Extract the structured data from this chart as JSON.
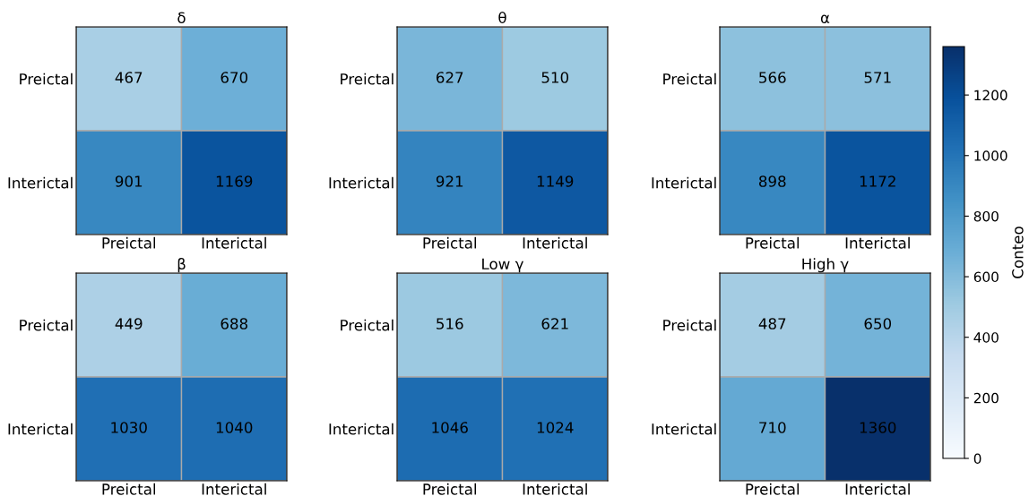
{
  "chart_data": [
    {
      "type": "heatmap",
      "title": "δ",
      "categories": [
        "Preictal",
        "Interictal"
      ],
      "y_categories": [
        "Preictal",
        "Interictal"
      ],
      "cells": [
        [
          467,
          670
        ],
        [
          901,
          1169
        ]
      ],
      "data_labels": true
    },
    {
      "type": "heatmap",
      "title": "θ",
      "categories": [
        "Preictal",
        "Interictal"
      ],
      "y_categories": [
        "Preictal",
        "Interictal"
      ],
      "cells": [
        [
          627,
          510
        ],
        [
          921,
          1149
        ]
      ],
      "data_labels": true
    },
    {
      "type": "heatmap",
      "title": "α",
      "categories": [
        "Preictal",
        "Interictal"
      ],
      "y_categories": [
        "Preictal",
        "Interictal"
      ],
      "cells": [
        [
          566,
          571
        ],
        [
          898,
          1172
        ]
      ],
      "data_labels": true
    },
    {
      "type": "heatmap",
      "title": "β",
      "categories": [
        "Preictal",
        "Interictal"
      ],
      "y_categories": [
        "Preictal",
        "Interictal"
      ],
      "cells": [
        [
          449,
          688
        ],
        [
          1030,
          1040
        ]
      ],
      "data_labels": true
    },
    {
      "type": "heatmap",
      "title": "Low γ",
      "categories": [
        "Preictal",
        "Interictal"
      ],
      "y_categories": [
        "Preictal",
        "Interictal"
      ],
      "cells": [
        [
          516,
          621
        ],
        [
          1046,
          1024
        ]
      ],
      "data_labels": true
    },
    {
      "type": "heatmap",
      "title": "High γ",
      "categories": [
        "Preictal",
        "Interictal"
      ],
      "y_categories": [
        "Preictal",
        "Interictal"
      ],
      "cells": [
        [
          487,
          650
        ],
        [
          710,
          1360
        ]
      ],
      "clim": [
        0,
        1360
      ],
      "cticks": [
        0,
        200,
        400,
        600,
        800,
        1000,
        1200
      ],
      "clabel": "Conteo",
      "data_labels": true
    }
  ]
}
